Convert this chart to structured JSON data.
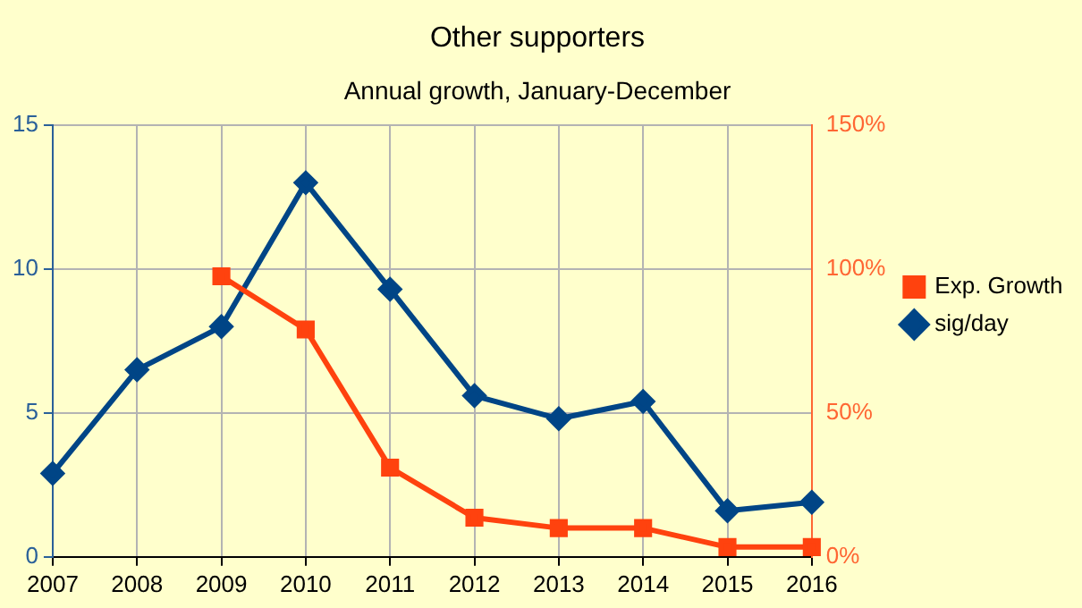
{
  "chart_data": {
    "type": "line",
    "title": "Other supporters",
    "subtitle": "Annual growth, January-December",
    "categories": [
      "2007",
      "2008",
      "2009",
      "2010",
      "2011",
      "2012",
      "2013",
      "2014",
      "2015",
      "2016"
    ],
    "series": [
      {
        "name": "Exp. Growth",
        "color": "#ff420e",
        "axis": "y2",
        "marker": "square",
        "values": [
          null,
          null,
          97.5,
          79,
          31,
          13.6,
          10,
          10,
          3.4,
          3.4
        ]
      },
      {
        "name": "sig/day",
        "color": "#004586",
        "axis": "y",
        "marker": "diamond",
        "values": [
          2.9,
          6.5,
          8.0,
          13.0,
          9.3,
          5.6,
          4.8,
          5.4,
          1.6,
          1.9
        ]
      }
    ],
    "ylim": [
      0,
      15
    ],
    "yticks": [
      0,
      5,
      10,
      15
    ],
    "y2lim": [
      0,
      150
    ],
    "y2ticks": [
      {
        "value": 0,
        "label": "0%"
      },
      {
        "value": 50,
        "label": "50%"
      },
      {
        "value": 100,
        "label": "100%"
      },
      {
        "value": 150,
        "label": "150%"
      }
    ],
    "grid": true,
    "legend": "right",
    "line_style": "solid"
  }
}
